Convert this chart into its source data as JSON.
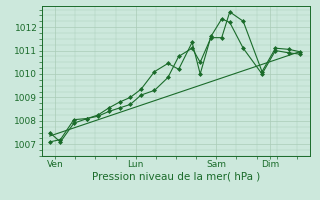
{
  "background_color": "#cce8dc",
  "plot_bg_color": "#cce8dc",
  "grid_color": "#aaccb8",
  "line_color": "#1a6b2a",
  "marker_color": "#1a6b2a",
  "xlabel": "Pression niveau de la mer( hPa )",
  "ylim": [
    1006.5,
    1012.9
  ],
  "yticks": [
    1007,
    1008,
    1009,
    1010,
    1011,
    1012
  ],
  "x_tick_labels": [
    "Ven",
    "Lun",
    "Sam",
    "Dim"
  ],
  "x_tick_positions": [
    0.5,
    3.5,
    6.5,
    8.5
  ],
  "xlim": [
    0,
    10.0
  ],
  "series1_x": [
    0.3,
    0.7,
    1.2,
    1.7,
    2.1,
    2.5,
    2.9,
    3.3,
    3.7,
    4.2,
    4.7,
    5.1,
    5.6,
    5.9,
    6.3,
    6.7,
    7.0,
    7.5,
    8.2,
    8.7,
    9.2,
    9.6
  ],
  "series1_y": [
    1007.5,
    1007.1,
    1007.9,
    1008.1,
    1008.2,
    1008.4,
    1008.55,
    1008.7,
    1009.1,
    1009.3,
    1009.85,
    1010.75,
    1011.1,
    1010.5,
    1011.55,
    1011.55,
    1012.65,
    1012.25,
    1010.1,
    1011.1,
    1011.05,
    1010.95
  ],
  "series2_x": [
    0.3,
    0.7,
    1.2,
    1.7,
    2.1,
    2.5,
    2.9,
    3.3,
    3.7,
    4.2,
    4.7,
    5.1,
    5.6,
    5.9,
    6.3,
    6.7,
    7.0,
    7.5,
    8.2,
    8.7,
    9.2,
    9.6
  ],
  "series2_y": [
    1007.1,
    1007.2,
    1008.05,
    1008.1,
    1008.25,
    1008.55,
    1008.8,
    1009.0,
    1009.35,
    1010.1,
    1010.45,
    1010.2,
    1011.35,
    1010.0,
    1011.6,
    1012.35,
    1012.2,
    1011.1,
    1010.0,
    1011.0,
    1010.9,
    1010.85
  ],
  "trend_x": [
    0.3,
    9.6
  ],
  "trend_y": [
    1007.35,
    1010.95
  ],
  "label_fontsize": 7.5,
  "tick_fontsize": 6.5
}
